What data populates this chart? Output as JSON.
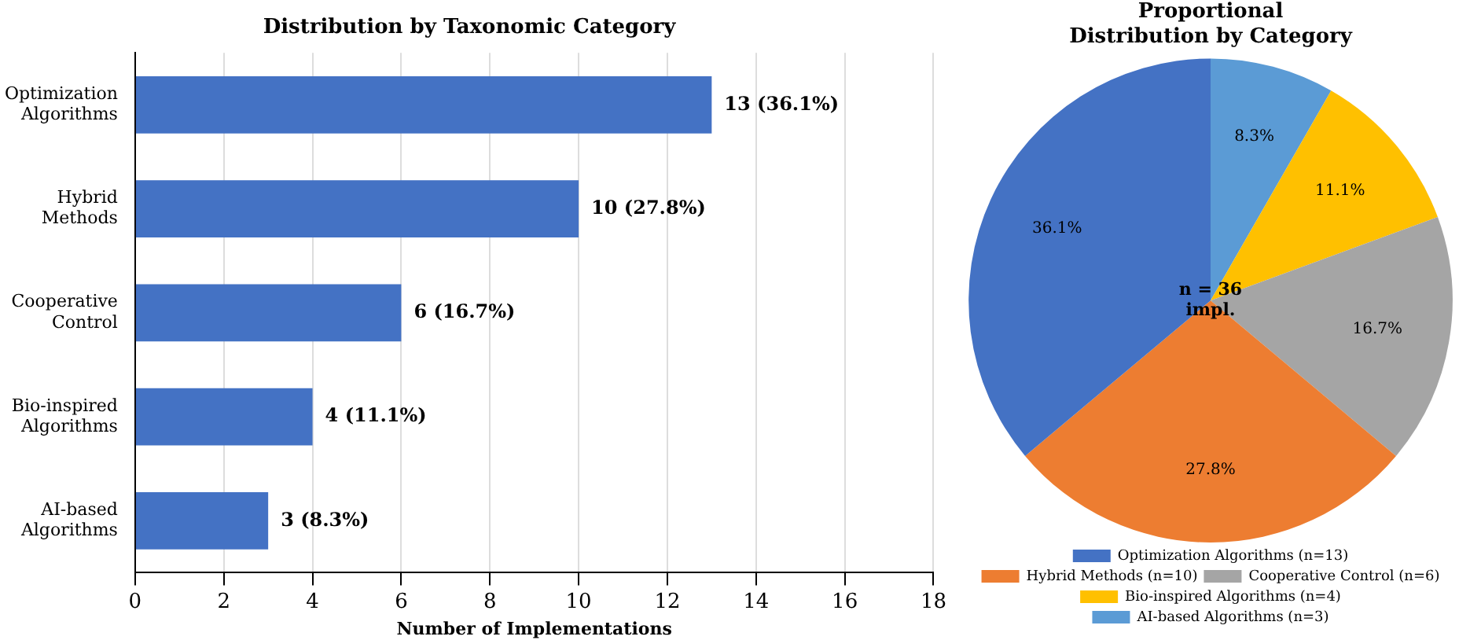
{
  "chart_data": [
    {
      "type": "bar",
      "orientation": "horizontal",
      "title": "Distribution by Taxonomic Category",
      "xlabel": "Number of Implementations",
      "categories": [
        "Optimization Algorithms",
        "Hybrid Methods",
        "Cooperative Control",
        "Bio-inspired Algorithms",
        "AI-based Algorithms"
      ],
      "values": [
        13,
        10,
        6,
        4,
        3
      ],
      "color": "#4472c4",
      "value_labels": [
        "13 (36.1%)",
        "10 (27.8%)",
        "6 (16.7%)",
        "4 (11.1%)",
        "3 (8.3%)"
      ],
      "xlim": [
        0,
        18
      ],
      "xticks": [
        0,
        2,
        4,
        6,
        8,
        10,
        12,
        14,
        16,
        18
      ],
      "grid": "x",
      "legend": false
    },
    {
      "type": "pie",
      "title": "Proportional Distribution by Category",
      "categories": [
        "Optimization Algorithms (n=13)",
        "Hybrid Methods (n=10)",
        "Cooperative Control (n=6)",
        "Bio-inspired Algorithms (n=4)",
        "AI-based Algorithms (n=3)"
      ],
      "values": [
        36.1,
        27.8,
        16.7,
        11.1,
        8.3
      ],
      "colors": [
        "#4472c4",
        "#ed7d31",
        "#a5a5a5",
        "#ffc000",
        "#5b9bd5"
      ],
      "value_labels": [
        "36.1%",
        "27.8%",
        "16.7%",
        "11.1%",
        "8.3%"
      ],
      "legend": "bottom",
      "annotations": [
        "n = 36 impl."
      ]
    }
  ]
}
